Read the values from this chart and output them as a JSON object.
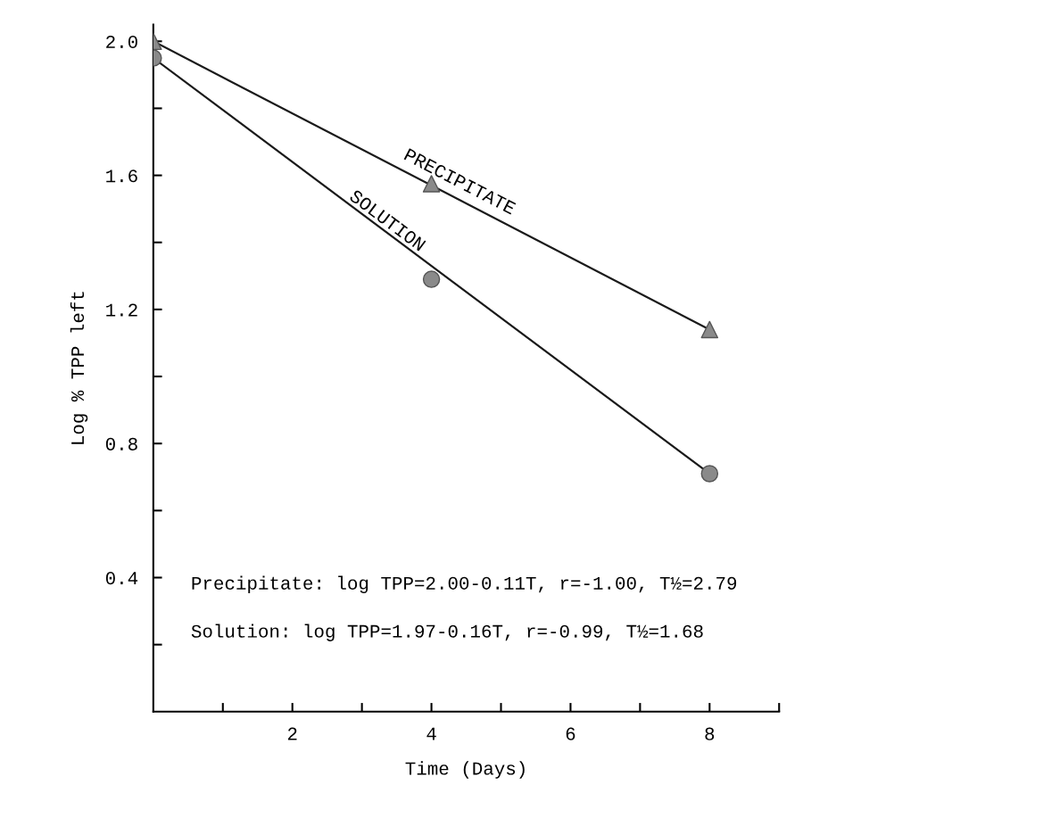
{
  "chart_data": {
    "type": "scatter",
    "xlabel": "Time (Days)",
    "ylabel": "Log % TPP left",
    "series": [
      {
        "marker": "triangle",
        "color": "#8a8a8a",
        "x": [
          0,
          4,
          8
        ],
        "values": [
          2.0,
          1.575,
          1.14
        ]
      },
      {
        "marker": "circle",
        "color": "#8a8a8a",
        "x": [
          0,
          4,
          8
        ],
        "values": [
          1.95,
          1.29,
          0.71
        ]
      },
      {
        "type": "line",
        "name": "PRECIPITATE",
        "color": "#1a1a1a",
        "x": [
          0,
          8
        ],
        "values": [
          2.0,
          1.14
        ]
      },
      {
        "type": "line",
        "name": "SOLUTION",
        "color": "#1a1a1a",
        "x": [
          0,
          8
        ],
        "values": [
          1.95,
          0.71
        ]
      }
    ],
    "xlim": [
      0,
      9
    ],
    "ylim": [
      0,
      2.05
    ],
    "xticks": [
      {
        "value": 1,
        "label": null
      },
      2,
      {
        "value": 3,
        "label": null
      },
      4,
      {
        "value": 5,
        "label": null
      },
      6,
      {
        "value": 7,
        "label": null
      },
      8,
      {
        "value": 9,
        "label": null
      }
    ],
    "yticks": [
      {
        "value": 0.2,
        "label": null
      },
      0.4,
      {
        "value": 0.6,
        "label": null
      },
      0.8,
      {
        "value": 1.0,
        "label": null
      },
      1.2,
      {
        "value": 1.4,
        "label": null
      },
      1.6,
      {
        "value": 1.8,
        "label": null
      },
      {
        "value": 2.0,
        "label": "2.0"
      }
    ],
    "annotations": [
      "Precipitate: log TPP=2.00-0.11T, r=-1.00, T½=2.79",
      "Solution: log TPP=1.97-0.16T, r=-0.99, T½=1.68"
    ],
    "grid": false,
    "legend": false
  }
}
